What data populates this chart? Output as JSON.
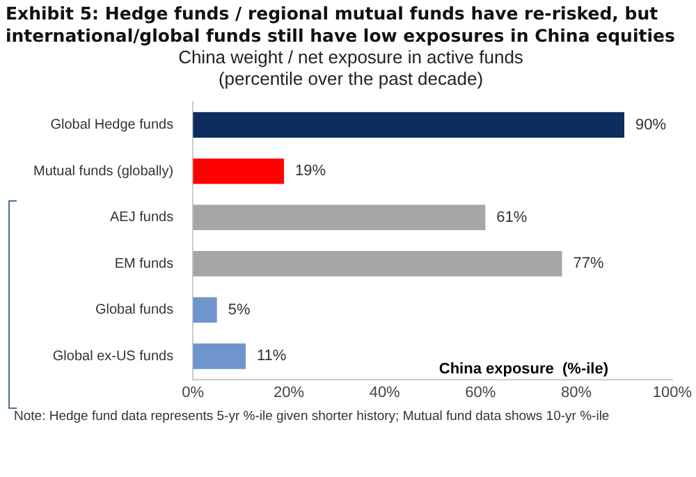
{
  "chart_data": {
    "type": "bar",
    "orientation": "horizontal",
    "title": "Exhibit 5: Hedge funds / regional mutual funds have re-risked, but international/global funds still have low exposures in China equities",
    "subtitle": "China weight / net exposure in active funds\n(percentile over the past decade)",
    "xlabel": "China exposure  (%-ile)",
    "categories": [
      "Global Hedge funds",
      "Mutual funds (globally)",
      "AEJ funds",
      "EM funds",
      "Global funds",
      "Global ex-US funds"
    ],
    "values": [
      90,
      19,
      61,
      77,
      5,
      11
    ],
    "colors": [
      "#0d2d5e",
      "#ff0000",
      "#a6a6a6",
      "#a6a6a6",
      "#7094cc",
      "#7094cc"
    ],
    "value_labels": [
      "90%",
      "19%",
      "61%",
      "77%",
      "5%",
      "11%"
    ],
    "xlim": [
      0,
      100
    ],
    "xticks": [
      {
        "value": 0,
        "label": "0%"
      },
      {
        "value": 20,
        "label": "20%"
      },
      {
        "value": 40,
        "label": "40%"
      },
      {
        "value": 60,
        "label": "60%"
      },
      {
        "value": 80,
        "label": "80%"
      },
      {
        "value": 100,
        "label": "100%"
      }
    ],
    "grid": false,
    "legend": false,
    "annotations": [
      "Note: Hedge fund data represents 5-yr %-ile given shorter history; Mutual fund data shows 10-yr %-ile"
    ]
  }
}
